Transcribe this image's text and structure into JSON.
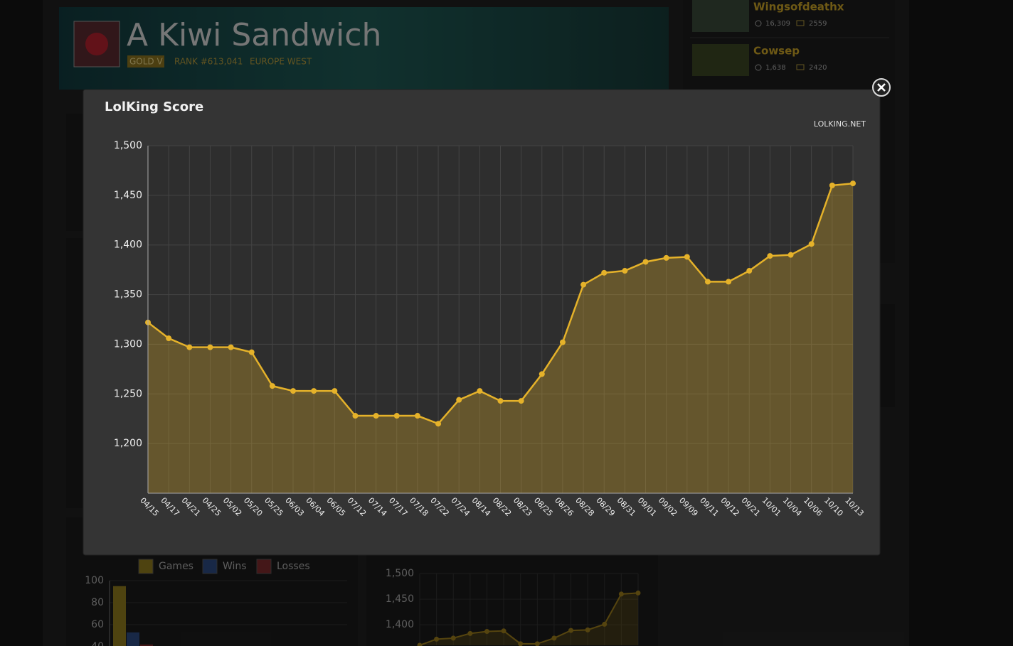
{
  "profile": {
    "name": "A Kiwi Sandwich",
    "tier": "GOLD V",
    "rank": "RANK #613,041",
    "region": "EUROPE WEST"
  },
  "streams": [
    {
      "name": "Wingsofdeathx",
      "viewers": "16,309",
      "score": "2559"
    },
    {
      "name": "Cowsep",
      "viewers": "1,638",
      "score": "2420"
    }
  ],
  "modal": {
    "source": "LOLKING.NET"
  },
  "chart_data": [
    {
      "type": "line",
      "title": "LolKing Score",
      "categories": [
        "04/15",
        "04/17",
        "04/21",
        "04/25",
        "05/02",
        "05/20",
        "05/25",
        "06/03",
        "06/04",
        "06/05",
        "07/12",
        "07/14",
        "07/17",
        "07/18",
        "07/22",
        "07/24",
        "08/14",
        "08/22",
        "08/23",
        "08/25",
        "08/26",
        "08/28",
        "08/29",
        "08/31",
        "09/01",
        "09/02",
        "09/09",
        "09/11",
        "09/12",
        "09/21",
        "10/01",
        "10/04",
        "10/06",
        "10/10",
        "10/13"
      ],
      "values": [
        1322,
        1306,
        1297,
        1297,
        1297,
        1292,
        1258,
        1253,
        1253,
        1253,
        1228,
        1228,
        1228,
        1228,
        1220,
        1244,
        1253,
        1243,
        1243,
        1270,
        1302,
        1360,
        1372,
        1374,
        1383,
        1387,
        1388,
        1363,
        1363,
        1374,
        1389,
        1390,
        1401,
        1460,
        1462
      ],
      "color": "#e5b22a",
      "ylim": [
        1150,
        1500
      ],
      "yticks": [
        {
          "value": 1200,
          "label": "1,200"
        },
        {
          "value": 1250,
          "label": "1,250"
        },
        {
          "value": 1300,
          "label": "1,300"
        },
        {
          "value": 1350,
          "label": "1,350"
        },
        {
          "value": 1400,
          "label": "1,400"
        },
        {
          "value": 1450,
          "label": "1,450"
        },
        {
          "value": 1500,
          "label": "1,500"
        }
      ],
      "grid": true
    },
    {
      "type": "bar",
      "categories": [
        null
      ],
      "series": [
        {
          "name": "Games",
          "color": "#8f7a1e",
          "values": [
            95
          ]
        },
        {
          "name": "Wins",
          "color": "#2c4a80",
          "values": [
            53
          ]
        },
        {
          "name": "Losses",
          "color": "#7c2a2c",
          "values": [
            42
          ]
        }
      ],
      "ylim": [
        40,
        100
      ],
      "yticks": [
        40,
        60,
        80,
        100
      ],
      "grid": true
    },
    {
      "type": "line",
      "categories": [
        null,
        null,
        null,
        null,
        null,
        null,
        null,
        null,
        null,
        null,
        null,
        null,
        null,
        null
      ],
      "values": [
        1360,
        1372,
        1374,
        1383,
        1387,
        1388,
        1363,
        1363,
        1374,
        1389,
        1390,
        1401,
        1460,
        1462
      ],
      "color": "#9c7d1c",
      "ylim": [
        1360,
        1500
      ],
      "yticks": [
        {
          "value": 1400,
          "label": "1,400"
        },
        {
          "value": 1450,
          "label": "1,450"
        },
        {
          "value": 1500,
          "label": "1,500"
        }
      ],
      "grid": true
    }
  ]
}
